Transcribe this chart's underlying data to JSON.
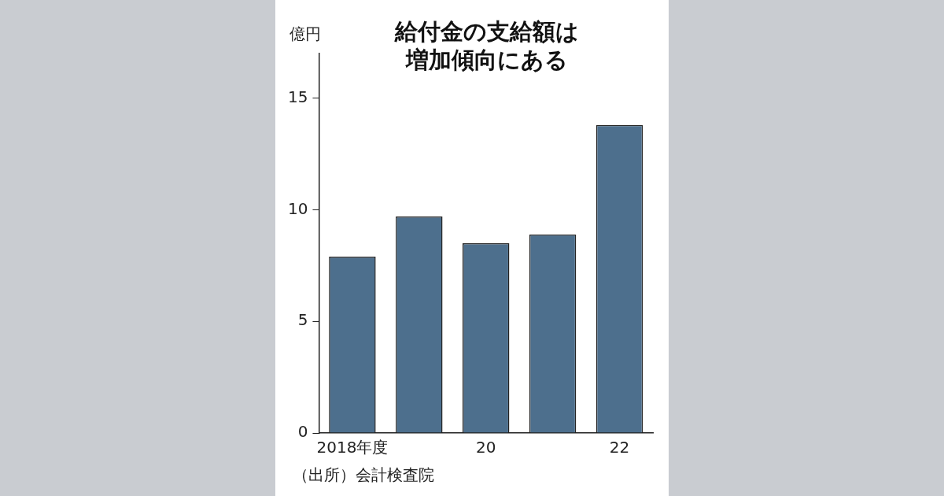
{
  "chart_data": {
    "type": "bar",
    "title": "給付金の支給額は増加傾向にある",
    "ylabel": "億円",
    "categories": [
      "2018年度",
      null,
      "20",
      null,
      "22"
    ],
    "values": [
      7.9,
      9.7,
      8.5,
      8.9,
      13.8
    ],
    "color": "#4d6f8d",
    "ylim": [
      0,
      17
    ],
    "yticks": [
      0,
      5,
      10,
      15
    ],
    "grid": false,
    "legend": false,
    "annotations": [
      "（出所）会計検査院"
    ]
  }
}
